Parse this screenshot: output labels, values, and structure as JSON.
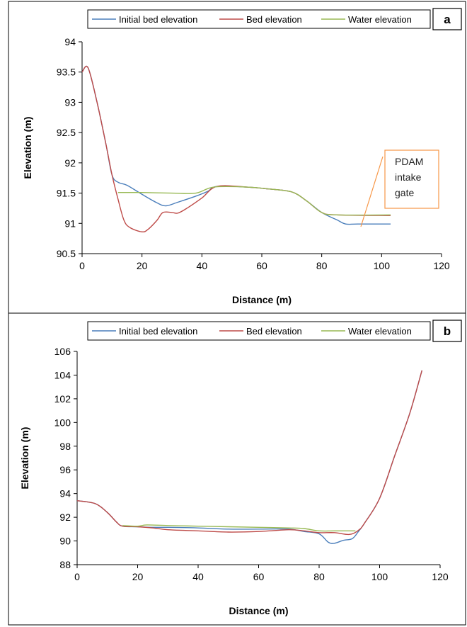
{
  "chart_data": [
    {
      "type": "line",
      "panel_label": "a",
      "xlabel": "Distance (m)",
      "ylabel": "Elevation (m)",
      "xlim": [
        0,
        120
      ],
      "ylim": [
        90.5,
        94
      ],
      "xticks": [
        "0",
        "20",
        "40",
        "60",
        "80",
        "100",
        "120"
      ],
      "yticks": [
        "90.5",
        "91",
        "91.5",
        "92",
        "92.5",
        "93",
        "93.5",
        "94"
      ],
      "xtick_values": [
        0,
        20,
        40,
        60,
        80,
        100,
        120
      ],
      "ytick_values": [
        90.5,
        91,
        91.5,
        92,
        92.5,
        93,
        93.5,
        94
      ],
      "grid": false,
      "legend_position": "top",
      "annotation": {
        "lines": [
          "PDAM",
          "intake",
          "gate"
        ]
      },
      "series": [
        {
          "name": "Initial bed elevation",
          "color": "#4A7EBB",
          "points": [
            [
              0,
              93.5
            ],
            [
              2,
              93.57
            ],
            [
              5,
              93.0
            ],
            [
              8,
              92.3
            ],
            [
              10,
              91.8
            ],
            [
              12,
              91.68
            ],
            [
              15,
              91.63
            ],
            [
              20,
              91.48
            ],
            [
              25,
              91.34
            ],
            [
              28,
              91.29
            ],
            [
              32,
              91.35
            ],
            [
              38,
              91.45
            ],
            [
              42,
              91.53
            ],
            [
              45,
              91.61
            ],
            [
              55,
              91.6
            ],
            [
              62,
              91.57
            ],
            [
              70,
              91.52
            ],
            [
              75,
              91.37
            ],
            [
              80,
              91.18
            ],
            [
              85,
              91.06
            ],
            [
              88,
              90.99
            ],
            [
              92,
              90.99
            ],
            [
              103,
              90.99
            ]
          ]
        },
        {
          "name": "Bed elevation",
          "color": "#BE4B48",
          "points": [
            [
              0,
              93.5
            ],
            [
              2,
              93.57
            ],
            [
              5,
              93.0
            ],
            [
              8,
              92.3
            ],
            [
              10,
              91.8
            ],
            [
              12,
              91.4
            ],
            [
              14,
              91.05
            ],
            [
              16,
              90.93
            ],
            [
              20,
              90.86
            ],
            [
              22,
              90.9
            ],
            [
              25,
              91.05
            ],
            [
              27,
              91.18
            ],
            [
              30,
              91.18
            ],
            [
              32,
              91.17
            ],
            [
              35,
              91.25
            ],
            [
              40,
              91.42
            ],
            [
              45,
              91.61
            ],
            [
              55,
              91.6
            ],
            [
              62,
              91.57
            ],
            [
              70,
              91.52
            ],
            [
              75,
              91.37
            ],
            [
              80,
              91.18
            ],
            [
              85,
              91.14
            ],
            [
              103,
              91.13
            ]
          ]
        },
        {
          "name": "Water elevation",
          "color": "#98B954",
          "points": [
            [
              12,
              91.51
            ],
            [
              20,
              91.51
            ],
            [
              30,
              91.5
            ],
            [
              38,
              91.5
            ],
            [
              44,
              91.6
            ],
            [
              55,
              91.6
            ],
            [
              62,
              91.57
            ],
            [
              70,
              91.52
            ],
            [
              75,
              91.37
            ],
            [
              80,
              91.18
            ],
            [
              85,
              91.14
            ],
            [
              103,
              91.14
            ]
          ]
        }
      ]
    },
    {
      "type": "line",
      "panel_label": "b",
      "xlabel": "Distance (m)",
      "ylabel": "Elevation (m)",
      "xlim": [
        0,
        120
      ],
      "ylim": [
        88,
        106
      ],
      "xticks": [
        "0",
        "20",
        "40",
        "60",
        "80",
        "100",
        "120"
      ],
      "yticks": [
        "88",
        "90",
        "92",
        "94",
        "96",
        "98",
        "100",
        "102",
        "104",
        "106"
      ],
      "xtick_values": [
        0,
        20,
        40,
        60,
        80,
        100,
        120
      ],
      "ytick_values": [
        88,
        90,
        92,
        94,
        96,
        98,
        100,
        102,
        104,
        106
      ],
      "grid": false,
      "legend_position": "top",
      "series": [
        {
          "name": "Initial bed elevation",
          "color": "#4A7EBB",
          "points": [
            [
              0,
              93.4
            ],
            [
              6,
              93.15
            ],
            [
              10,
              92.4
            ],
            [
              13,
              91.6
            ],
            [
              15,
              91.25
            ],
            [
              20,
              91.2
            ],
            [
              25,
              91.15
            ],
            [
              30,
              91.15
            ],
            [
              40,
              91.1
            ],
            [
              50,
              91.0
            ],
            [
              60,
              91.0
            ],
            [
              70,
              91.0
            ],
            [
              75,
              90.8
            ],
            [
              80,
              90.6
            ],
            [
              83,
              89.9
            ],
            [
              85,
              89.8
            ],
            [
              88,
              90.05
            ],
            [
              91,
              90.2
            ],
            [
              93,
              90.8
            ],
            [
              95,
              91.5
            ],
            [
              100,
              93.6
            ],
            [
              105,
              97.2
            ],
            [
              110,
              100.8
            ],
            [
              114,
              104.4
            ]
          ]
        },
        {
          "name": "Bed elevation",
          "color": "#BE4B48",
          "points": [
            [
              0,
              93.4
            ],
            [
              6,
              93.15
            ],
            [
              10,
              92.4
            ],
            [
              13,
              91.6
            ],
            [
              15,
              91.25
            ],
            [
              20,
              91.2
            ],
            [
              25,
              91.1
            ],
            [
              30,
              90.95
            ],
            [
              40,
              90.85
            ],
            [
              50,
              90.75
            ],
            [
              60,
              90.8
            ],
            [
              70,
              90.95
            ],
            [
              75,
              90.85
            ],
            [
              80,
              90.7
            ],
            [
              85,
              90.7
            ],
            [
              90,
              90.55
            ],
            [
              93,
              90.9
            ],
            [
              95,
              91.5
            ],
            [
              100,
              93.6
            ],
            [
              105,
              97.2
            ],
            [
              110,
              100.8
            ],
            [
              114,
              104.4
            ]
          ]
        },
        {
          "name": "Water elevation",
          "color": "#98B954",
          "points": [
            [
              15,
              91.3
            ],
            [
              20,
              91.25
            ],
            [
              23,
              91.35
            ],
            [
              30,
              91.3
            ],
            [
              40,
              91.25
            ],
            [
              50,
              91.2
            ],
            [
              60,
              91.15
            ],
            [
              70,
              91.1
            ],
            [
              75,
              91.05
            ],
            [
              80,
              90.85
            ],
            [
              85,
              90.85
            ],
            [
              92,
              90.85
            ]
          ]
        }
      ]
    }
  ]
}
